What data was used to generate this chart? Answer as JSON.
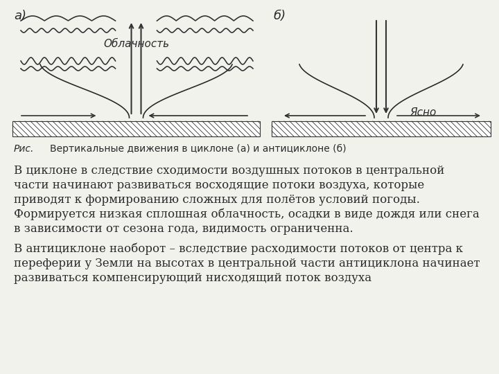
{
  "bg_color": "#f2f2ed",
  "label_a": "а)",
  "label_b": "б)",
  "label_oblachnost": "Облачность",
  "label_yasno": "Ясно",
  "caption_ris": "Рис.",
  "caption_text": "Вертикальные движения в циклоне (а) и антициклоне (б)",
  "para1_line1": "В циклоне в следствие сходимости воздушных потоков в центральной",
  "para1_line2": "части начинают развиваться восходящие потоки воздуха, которые",
  "para1_line3": "приводят к формированию сложных для полётов условий погоды.",
  "para1_line4": "Формируется низкая сплошная облачность, осадки в виде дождя или снега",
  "para1_line5": "в зависимости от сезона года, видимость ограниченна.",
  "para2_line1": "В антициклоне наоборот – вследствие расходимости потоков от центра к",
  "para2_line2": "переферии у Земли на высотах в центральной части антициклона начинает",
  "para2_line3": "развиваться компенсирующий нисходящий поток воздуха"
}
